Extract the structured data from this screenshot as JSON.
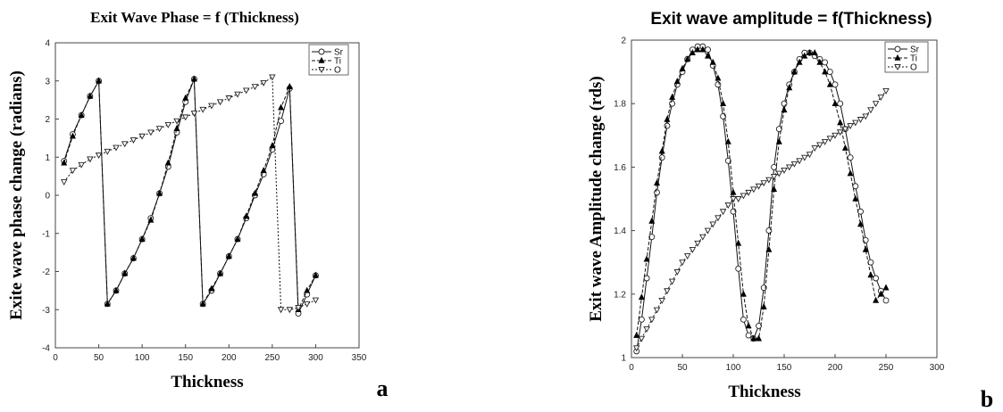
{
  "chart_data": [
    {
      "type": "line",
      "panel_label": "a",
      "title": "Exit Wave Phase = f (Thickness)",
      "xlabel": "Thickness",
      "ylabel": "Exite wave phase change (radians)",
      "xlim": [
        0,
        350
      ],
      "ylim": [
        -4,
        4
      ],
      "xticks": [
        "0",
        "50",
        "100",
        "150",
        "200",
        "250",
        "300",
        "350"
      ],
      "yticks": [
        "-4",
        "-3",
        "-2",
        "-1",
        "0",
        "1",
        "2",
        "3",
        "4"
      ],
      "legend_position": "top-right",
      "series": [
        {
          "name": "Sr",
          "marker": "circle",
          "x": [
            10,
            20,
            30,
            40,
            50,
            60,
            70,
            80,
            90,
            100,
            110,
            120,
            130,
            140,
            150,
            160,
            170,
            180,
            190,
            200,
            210,
            220,
            230,
            240,
            250,
            260,
            270,
            280,
            290,
            300
          ],
          "y": [
            0.9,
            1.6,
            2.1,
            2.6,
            3.0,
            -2.85,
            -2.5,
            -2.05,
            -1.65,
            -1.15,
            -0.6,
            0.05,
            0.75,
            1.65,
            2.45,
            3.05,
            -2.85,
            -2.5,
            -2.05,
            -1.6,
            -1.15,
            -0.6,
            0.0,
            0.55,
            1.2,
            1.95,
            2.8,
            -3.1,
            -2.6,
            -2.1
          ]
        },
        {
          "name": "Ti",
          "marker": "triangle-up",
          "x": [
            10,
            20,
            30,
            40,
            50,
            60,
            70,
            80,
            90,
            100,
            110,
            120,
            130,
            140,
            150,
            160,
            170,
            180,
            190,
            200,
            210,
            220,
            230,
            240,
            250,
            260,
            270,
            280,
            290,
            300
          ],
          "y": [
            0.85,
            1.55,
            2.1,
            2.6,
            3.0,
            -2.85,
            -2.5,
            -2.05,
            -1.65,
            -1.15,
            -0.65,
            0.05,
            0.85,
            1.75,
            2.55,
            3.05,
            -2.85,
            -2.45,
            -2.05,
            -1.6,
            -1.15,
            -0.55,
            0.05,
            0.65,
            1.3,
            2.3,
            2.85,
            -3.0,
            -2.5,
            -2.1
          ]
        },
        {
          "name": "O",
          "marker": "triangle-down",
          "x": [
            10,
            20,
            30,
            40,
            50,
            60,
            70,
            80,
            90,
            100,
            110,
            120,
            130,
            140,
            150,
            160,
            170,
            180,
            190,
            200,
            210,
            220,
            230,
            240,
            250,
            260,
            270,
            280,
            290,
            300
          ],
          "y": [
            0.35,
            0.65,
            0.8,
            0.95,
            1.05,
            1.15,
            1.25,
            1.35,
            1.45,
            1.55,
            1.65,
            1.75,
            1.85,
            1.95,
            2.05,
            2.15,
            2.25,
            2.35,
            2.45,
            2.55,
            2.65,
            2.75,
            2.85,
            2.95,
            3.1,
            -3.0,
            -3.0,
            -2.95,
            -2.85,
            -2.75
          ]
        }
      ]
    },
    {
      "type": "line",
      "panel_label": "b",
      "title": "Exit wave amplitude = f(Thickness)",
      "xlabel": "Thickness",
      "ylabel": "Exit wave Amplitude change (rds)",
      "xlim": [
        0,
        300
      ],
      "ylim": [
        1,
        2
      ],
      "xticks": [
        "0",
        "50",
        "100",
        "150",
        "200",
        "250",
        "300"
      ],
      "yticks": [
        "1",
        "1.2",
        "1.4",
        "1.6",
        "1.8",
        "2"
      ],
      "legend_position": "top-right",
      "series": [
        {
          "name": "Sr",
          "marker": "circle",
          "x": [
            5,
            10,
            15,
            20,
            25,
            30,
            35,
            40,
            45,
            50,
            55,
            60,
            65,
            70,
            75,
            80,
            85,
            90,
            95,
            100,
            105,
            110,
            115,
            120,
            125,
            130,
            135,
            140,
            145,
            150,
            155,
            160,
            165,
            170,
            175,
            180,
            185,
            190,
            195,
            200,
            205,
            210,
            215,
            220,
            225,
            230,
            235,
            240,
            245,
            250
          ],
          "y": [
            1.02,
            1.12,
            1.25,
            1.38,
            1.52,
            1.63,
            1.73,
            1.8,
            1.86,
            1.9,
            1.94,
            1.97,
            1.98,
            1.98,
            1.97,
            1.92,
            1.86,
            1.76,
            1.62,
            1.46,
            1.28,
            1.12,
            1.07,
            1.06,
            1.1,
            1.22,
            1.4,
            1.6,
            1.72,
            1.8,
            1.86,
            1.9,
            1.94,
            1.96,
            1.96,
            1.95,
            1.94,
            1.93,
            1.9,
            1.86,
            1.8,
            1.72,
            1.63,
            1.54,
            1.46,
            1.37,
            1.3,
            1.25,
            1.21,
            1.18
          ]
        },
        {
          "name": "Ti",
          "marker": "triangle-up",
          "x": [
            5,
            10,
            15,
            20,
            25,
            30,
            35,
            40,
            45,
            50,
            55,
            60,
            65,
            70,
            75,
            80,
            85,
            90,
            95,
            100,
            105,
            110,
            115,
            120,
            125,
            130,
            135,
            140,
            145,
            150,
            155,
            160,
            165,
            170,
            175,
            180,
            185,
            190,
            195,
            200,
            205,
            210,
            215,
            220,
            225,
            230,
            235,
            240,
            245,
            250
          ],
          "y": [
            1.07,
            1.19,
            1.31,
            1.43,
            1.55,
            1.65,
            1.75,
            1.82,
            1.87,
            1.91,
            1.94,
            1.96,
            1.97,
            1.97,
            1.95,
            1.93,
            1.88,
            1.8,
            1.68,
            1.52,
            1.36,
            1.2,
            1.1,
            1.06,
            1.06,
            1.16,
            1.34,
            1.53,
            1.68,
            1.78,
            1.85,
            1.9,
            1.93,
            1.95,
            1.96,
            1.96,
            1.93,
            1.9,
            1.86,
            1.8,
            1.74,
            1.66,
            1.58,
            1.5,
            1.42,
            1.34,
            1.26,
            1.18,
            1.2,
            1.22
          ]
        },
        {
          "name": "O",
          "marker": "triangle-down",
          "x": [
            5,
            10,
            15,
            20,
            25,
            30,
            35,
            40,
            45,
            50,
            55,
            60,
            65,
            70,
            75,
            80,
            85,
            90,
            95,
            100,
            105,
            110,
            115,
            120,
            125,
            130,
            135,
            140,
            145,
            150,
            155,
            160,
            165,
            170,
            175,
            180,
            185,
            190,
            195,
            200,
            205,
            210,
            215,
            220,
            225,
            230,
            235,
            240,
            245,
            250
          ],
          "y": [
            1.03,
            1.06,
            1.09,
            1.12,
            1.15,
            1.18,
            1.21,
            1.24,
            1.27,
            1.3,
            1.32,
            1.34,
            1.36,
            1.38,
            1.4,
            1.42,
            1.44,
            1.46,
            1.48,
            1.5,
            1.5,
            1.51,
            1.52,
            1.53,
            1.54,
            1.55,
            1.56,
            1.57,
            1.58,
            1.59,
            1.6,
            1.61,
            1.62,
            1.63,
            1.64,
            1.66,
            1.67,
            1.68,
            1.69,
            1.7,
            1.71,
            1.72,
            1.73,
            1.74,
            1.75,
            1.76,
            1.78,
            1.8,
            1.82,
            1.84
          ]
        }
      ]
    }
  ]
}
